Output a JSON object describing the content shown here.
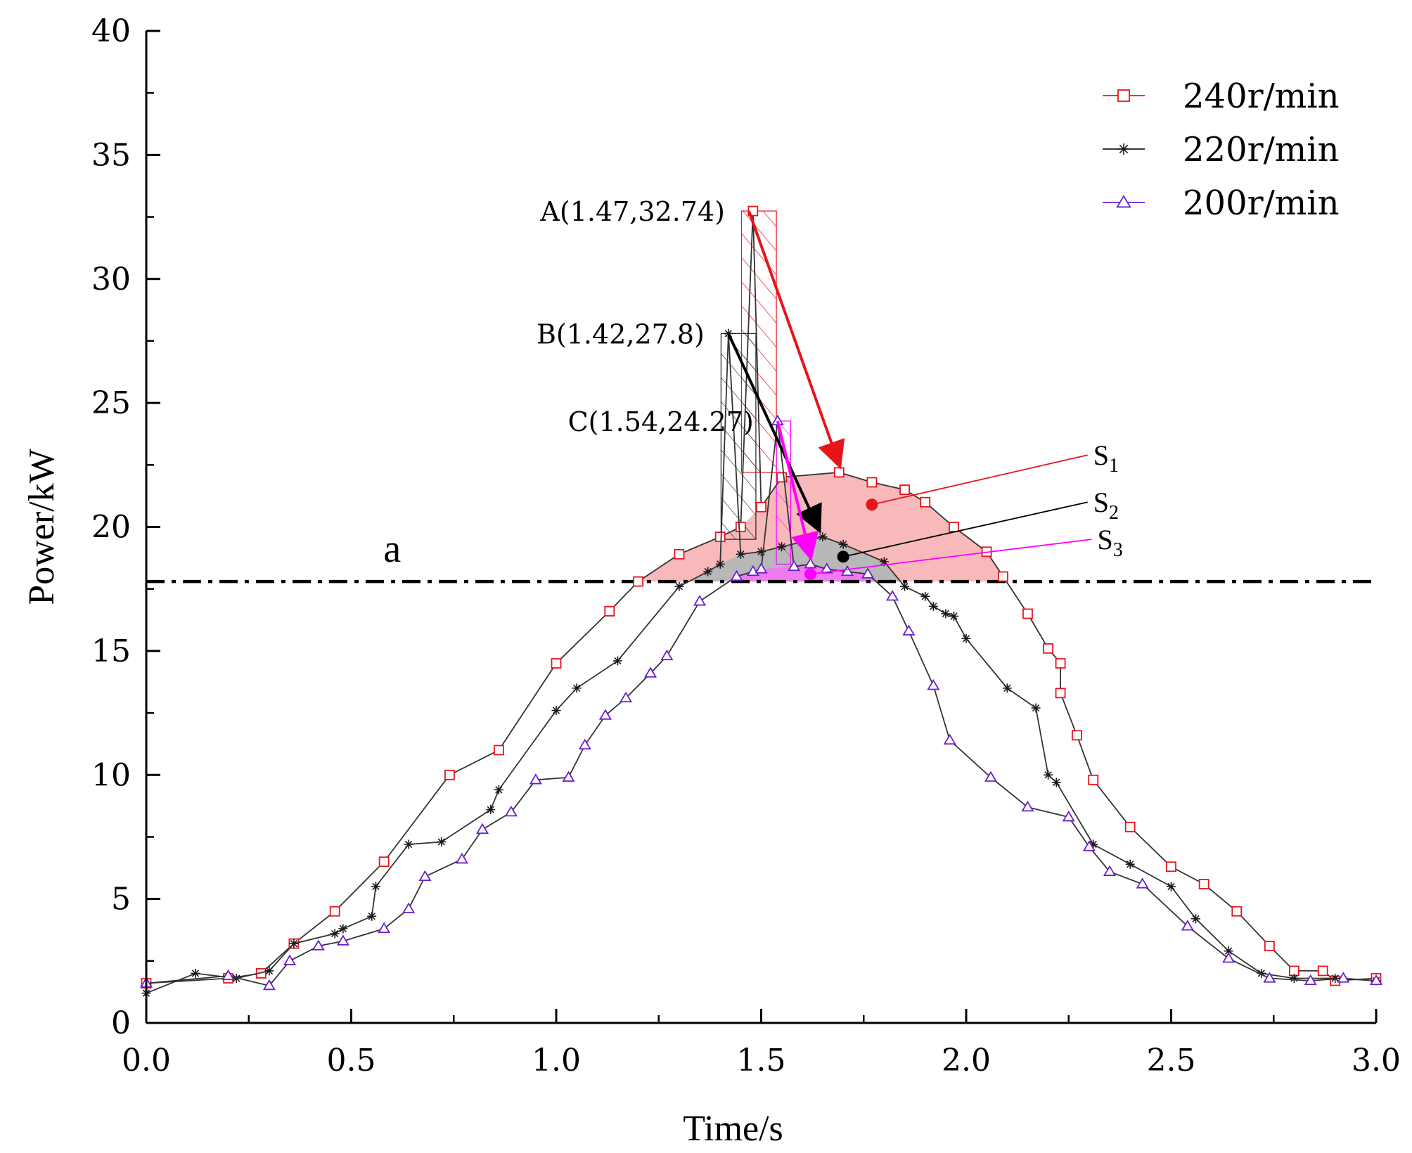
{
  "chart_data": {
    "type": "line",
    "xlabel": "Time/s",
    "ylabel": "Power/kW",
    "xlim": [
      0,
      3.0
    ],
    "ylim": [
      0,
      40
    ],
    "x_ticks": [
      "0.0",
      "0.5",
      "1.0",
      "1.5",
      "2.0",
      "2.5",
      "3.0"
    ],
    "x_tick_values": [
      0,
      0.5,
      1.0,
      1.5,
      2.0,
      2.5,
      3.0
    ],
    "y_ticks": [
      "0",
      "5",
      "10",
      "15",
      "20",
      "25",
      "30",
      "35",
      "40"
    ],
    "y_tick_values": [
      0,
      5,
      10,
      15,
      20,
      25,
      30,
      35,
      40
    ],
    "grid": false,
    "legend_position": "top-right",
    "threshold": {
      "label": "a",
      "y": 17.8
    },
    "series": [
      {
        "name": "240r/min",
        "color": "#e8141c",
        "marker": "square",
        "x": [
          0.0,
          0.2,
          0.28,
          0.36,
          0.46,
          0.58,
          0.74,
          0.86,
          1.0,
          1.13,
          1.2,
          1.3,
          1.4,
          1.45,
          1.48,
          1.5,
          1.55,
          1.69,
          1.77,
          1.85,
          1.9,
          1.97,
          2.05,
          2.09,
          2.15,
          2.2,
          2.23,
          2.23,
          2.27,
          2.31,
          2.4,
          2.5,
          2.58,
          2.66,
          2.74,
          2.8,
          2.87,
          2.9,
          3.0
        ],
        "y": [
          1.6,
          1.8,
          2.0,
          3.2,
          4.5,
          6.5,
          10.0,
          11.0,
          14.5,
          16.6,
          17.8,
          18.9,
          19.6,
          20.0,
          32.74,
          20.8,
          22.0,
          22.2,
          21.8,
          21.5,
          21.0,
          20.0,
          19.0,
          18.0,
          16.5,
          15.1,
          14.5,
          13.3,
          11.6,
          9.8,
          7.9,
          6.3,
          5.6,
          4.5,
          3.1,
          2.1,
          2.1,
          1.7,
          1.8
        ]
      },
      {
        "name": "220r/min",
        "color": "#1a1a1a",
        "marker": "asterisk",
        "x": [
          0.0,
          0.12,
          0.22,
          0.3,
          0.36,
          0.46,
          0.48,
          0.55,
          0.56,
          0.64,
          0.72,
          0.84,
          0.86,
          1.0,
          1.05,
          1.15,
          1.3,
          1.37,
          1.4,
          1.42,
          1.45,
          1.5,
          1.55,
          1.6,
          1.65,
          1.7,
          1.8,
          1.85,
          1.9,
          1.92,
          1.95,
          1.97,
          2.0,
          2.1,
          2.17,
          2.2,
          2.22,
          2.31,
          2.4,
          2.5,
          2.56,
          2.64,
          2.72,
          2.8,
          2.9,
          3.0
        ],
        "y": [
          1.2,
          2.0,
          1.8,
          2.1,
          3.2,
          3.6,
          3.8,
          4.3,
          5.5,
          7.2,
          7.3,
          8.6,
          9.4,
          12.6,
          13.5,
          14.6,
          17.6,
          18.2,
          18.5,
          27.8,
          18.9,
          19.0,
          19.2,
          19.4,
          19.6,
          19.3,
          18.6,
          17.6,
          17.2,
          16.8,
          16.5,
          16.4,
          15.5,
          13.5,
          12.7,
          10.0,
          9.7,
          7.2,
          6.4,
          5.5,
          4.2,
          2.9,
          2.0,
          1.8,
          1.8,
          1.7
        ]
      },
      {
        "name": "200r/min",
        "color": "#6a1fd0",
        "marker": "triangle",
        "x": [
          0.0,
          0.2,
          0.3,
          0.35,
          0.42,
          0.48,
          0.58,
          0.64,
          0.68,
          0.77,
          0.82,
          0.89,
          0.95,
          1.03,
          1.07,
          1.12,
          1.17,
          1.23,
          1.27,
          1.35,
          1.44,
          1.48,
          1.5,
          1.54,
          1.58,
          1.62,
          1.66,
          1.71,
          1.76,
          1.82,
          1.86,
          1.92,
          1.96,
          2.06,
          2.15,
          2.25,
          2.3,
          2.35,
          2.43,
          2.54,
          2.64,
          2.74,
          2.84,
          2.92,
          3.0
        ],
        "y": [
          1.6,
          1.9,
          1.5,
          2.5,
          3.1,
          3.3,
          3.8,
          4.6,
          5.9,
          6.6,
          7.8,
          8.5,
          9.8,
          9.9,
          11.2,
          12.4,
          13.1,
          14.1,
          14.8,
          17.0,
          18.0,
          18.2,
          18.3,
          24.27,
          18.4,
          18.5,
          18.3,
          18.2,
          18.1,
          17.2,
          15.8,
          13.6,
          11.4,
          9.9,
          8.7,
          8.3,
          7.1,
          6.1,
          5.6,
          3.9,
          2.6,
          1.8,
          1.7,
          1.8,
          1.7
        ]
      }
    ],
    "annotations": [
      {
        "label": "A(1.47,32.74)",
        "x": 1.47,
        "y": 32.74,
        "color": "#e8141c"
      },
      {
        "label": "B(1.42,27.8)",
        "x": 1.42,
        "y": 27.8,
        "color": "#1a1a1a"
      },
      {
        "label": "C(1.54,24.27)",
        "x": 1.54,
        "y": 24.27,
        "color": "#ff00ff"
      }
    ],
    "regions": [
      {
        "label": "S1",
        "sub": "1",
        "fill": "#f7b9b9",
        "dot": [
          1.77,
          20.9
        ],
        "label_at": [
          2.31,
          22.9
        ],
        "color": "#e8141c"
      },
      {
        "label": "S2",
        "sub": "2",
        "fill": "#b8b8b8",
        "dot": [
          1.7,
          18.8
        ],
        "label_at": [
          2.31,
          21.0
        ],
        "color": "#000000"
      },
      {
        "label": "S3",
        "sub": "3",
        "fill": "#f07af0",
        "dot": [
          1.62,
          18.1
        ],
        "label_at": [
          2.32,
          19.5
        ],
        "color": "#ff00ff"
      }
    ]
  }
}
